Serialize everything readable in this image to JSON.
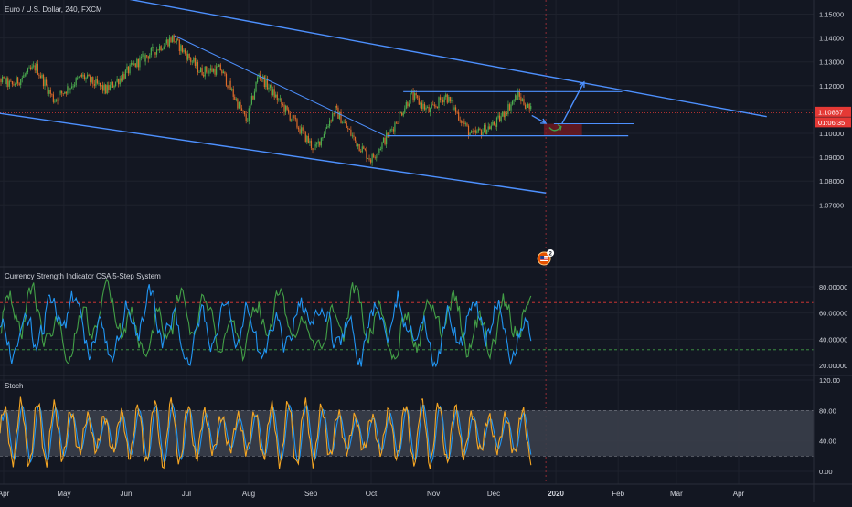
{
  "colors": {
    "background": "#131722",
    "grid": "#1e222d",
    "separator": "#2a2e39",
    "text": "#d1d4dc",
    "candle_up": "#4caf50",
    "candle_down": "#e06c2a",
    "trendline": "#2962ff",
    "drawing": "#4d90fe",
    "price_line": "#e53935",
    "vertical_marker": "#b0323a",
    "csa_series_1": "#2196f3",
    "csa_series_2": "#43a047",
    "csa_level_high": "#e53935",
    "csa_level_low": "#43a047",
    "stoch_k": "#f5a623",
    "stoch_d": "#2196f3",
    "stoch_band": "#3a3e4a"
  },
  "chart_data": [
    {
      "type": "candlestick",
      "title": "Euro / U.S. Dollar, 240, FXCM",
      "ylim": [
        1.065,
        1.155
      ],
      "y_ticks": [
        1.07,
        1.08,
        1.09,
        1.1,
        1.11,
        1.12,
        1.13,
        1.14,
        1.15
      ],
      "y_tick_labels": [
        "1.07000",
        "1.08000",
        "1.09000",
        "1.10000",
        "1.11000",
        "1.12000",
        "1.13000",
        "1.14000",
        "1.15000"
      ],
      "x_tick_labels": [
        "Apr",
        "May",
        "Jun",
        "Jul",
        "Aug",
        "Sep",
        "Oct",
        "Nov",
        "Dec",
        "2020",
        "Feb",
        "Mar",
        "Apr"
      ],
      "x_tick_dates": [
        "2019-04-01",
        "2019-05-01",
        "2019-06-01",
        "2019-07-01",
        "2019-08-01",
        "2019-09-01",
        "2019-10-01",
        "2019-11-01",
        "2019-12-01",
        "2020-01-01",
        "2020-02-01",
        "2020-03-01",
        "2020-04-01"
      ],
      "close_path": [
        {
          "x": "2019-03-25",
          "y": 1.125
        },
        {
          "x": "2019-04-05",
          "y": 1.12
        },
        {
          "x": "2019-04-17",
          "y": 1.128
        },
        {
          "x": "2019-04-26",
          "y": 1.114
        },
        {
          "x": "2019-05-10",
          "y": 1.124
        },
        {
          "x": "2019-05-22",
          "y": 1.118
        },
        {
          "x": "2019-06-07",
          "y": 1.13
        },
        {
          "x": "2019-06-24",
          "y": 1.14
        },
        {
          "x": "2019-07-08",
          "y": 1.126
        },
        {
          "x": "2019-07-18",
          "y": 1.127
        },
        {
          "x": "2019-07-31",
          "y": 1.105
        },
        {
          "x": "2019-08-06",
          "y": 1.125
        },
        {
          "x": "2019-08-21",
          "y": 1.108
        },
        {
          "x": "2019-09-03",
          "y": 1.093
        },
        {
          "x": "2019-09-13",
          "y": 1.11
        },
        {
          "x": "2019-09-23",
          "y": 1.097
        },
        {
          "x": "2019-10-01",
          "y": 1.089
        },
        {
          "x": "2019-10-10",
          "y": 1.1
        },
        {
          "x": "2019-10-21",
          "y": 1.116
        },
        {
          "x": "2019-10-30",
          "y": 1.109
        },
        {
          "x": "2019-11-07",
          "y": 1.116
        },
        {
          "x": "2019-11-20",
          "y": 1.099
        },
        {
          "x": "2019-12-02",
          "y": 1.104
        },
        {
          "x": "2019-12-13",
          "y": 1.116
        },
        {
          "x": "2019-12-20",
          "y": 1.109
        }
      ],
      "last_price": "1.10867",
      "countdown": "01:06:35",
      "drawings": {
        "channel_upper": [
          {
            "x": "2019-03-25",
            "y": 1.167
          },
          {
            "x": "2020-04-15",
            "y": 1.107
          }
        ],
        "channel_lower": [
          {
            "x": "2019-03-25",
            "y": 1.109
          },
          {
            "x": "2019-12-27",
            "y": 1.075
          }
        ],
        "falling_trendline": [
          {
            "x": "2019-06-25",
            "y": 1.141
          },
          {
            "x": "2019-10-08",
            "y": 1.099
          }
        ],
        "range_top": [
          {
            "x": "2019-10-17",
            "y": 1.1175
          },
          {
            "x": "2020-02-03",
            "y": 1.1175
          }
        ],
        "range_bottom": [
          {
            "x": "2019-10-09",
            "y": 1.099
          },
          {
            "x": "2020-02-06",
            "y": 1.099
          }
        ],
        "support_mid": [
          {
            "x": "2019-12-31",
            "y": 1.104
          },
          {
            "x": "2020-02-09",
            "y": 1.104
          }
        ],
        "projection_arrows": [
          [
            {
              "x": "2019-12-20",
              "y": 1.1075
            },
            {
              "x": "2019-12-27",
              "y": 1.1042
            }
          ],
          [
            {
              "x": "2020-01-04",
              "y": 1.104
            },
            {
              "x": "2020-01-15",
              "y": 1.1215
            }
          ]
        ],
        "risk_zone": {
          "x_from": "2019-12-26",
          "x_to": "2020-01-14",
          "y_from": 1.099,
          "y_to": 1.104
        },
        "vertical_marker_date": "2019-12-27"
      },
      "event_badge": "2"
    },
    {
      "type": "line",
      "title": "Currency Strength Indicator CSA 5-Step System",
      "ylim": [
        10,
        95
      ],
      "y_ticks": [
        20,
        40,
        60,
        80
      ],
      "y_tick_labels": [
        "20.00000",
        "40.00000",
        "60.00000",
        "80.00000"
      ],
      "levels": [
        68,
        32
      ],
      "series": [
        {
          "base": 52,
          "amplitude": 17
        },
        {
          "base": 50,
          "amplitude": 17
        }
      ]
    },
    {
      "type": "line",
      "title": "Stoch",
      "ylim": [
        -10,
        130
      ],
      "y_ticks": [
        0,
        40,
        80,
        120
      ],
      "y_tick_labels": [
        "0.00",
        "40.00",
        "80.00",
        "120.00"
      ],
      "band": [
        20,
        80
      ],
      "series": [
        {
          "base": 50,
          "amplitude": 42
        },
        {
          "base": 50,
          "amplitude": 38
        }
      ]
    }
  ]
}
